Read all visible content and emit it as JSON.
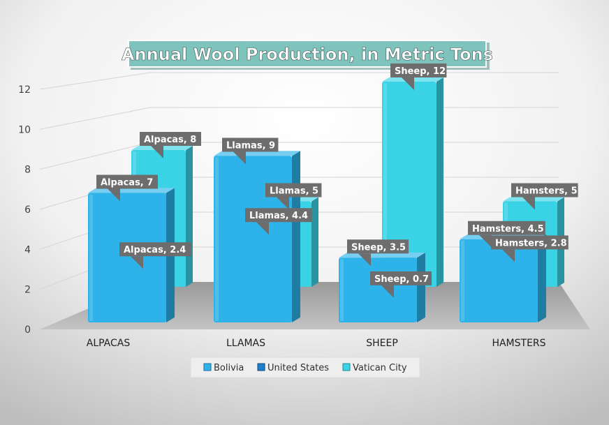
{
  "chart_data": {
    "type": "bar",
    "title": "Annual Wool Production, in Metric Tons",
    "categories": [
      "ALPACAS",
      "LLAMAS",
      "SHEEP",
      "HAMSTERS"
    ],
    "series": [
      {
        "name": "Bolivia",
        "values": [
          7,
          9,
          3.5,
          4.5
        ],
        "labels": [
          "Alpacas, 7",
          "Llamas, 9",
          "Sheep, 3.5",
          "Hamsters, 4.5"
        ]
      },
      {
        "name": "United States",
        "values": [
          2.4,
          4.4,
          0.7,
          2.8
        ],
        "labels": [
          "Alpacas, 2.4",
          "Llamas, 4.4",
          "Sheep, 0.7",
          "Hamsters, 2.8"
        ]
      },
      {
        "name": "Vatican City",
        "values": [
          8,
          5,
          12,
          5
        ],
        "labels": [
          "Alpacas, 8",
          "Llamas, 5",
          "Sheep, 12",
          "Hamsters, 5"
        ]
      }
    ],
    "yticks": [
      "0",
      "2",
      "4",
      "6",
      "8",
      "10",
      "12"
    ],
    "ylim": [
      0,
      12
    ],
    "grid": true,
    "legend": "bottom",
    "colors": {
      "Bolivia": "#2db3ea",
      "United States": "#1f7fcc",
      "Vatican City": "#3ad3e6",
      "callout": "#6d6d6d",
      "title_box": "#7fc3bd"
    }
  }
}
